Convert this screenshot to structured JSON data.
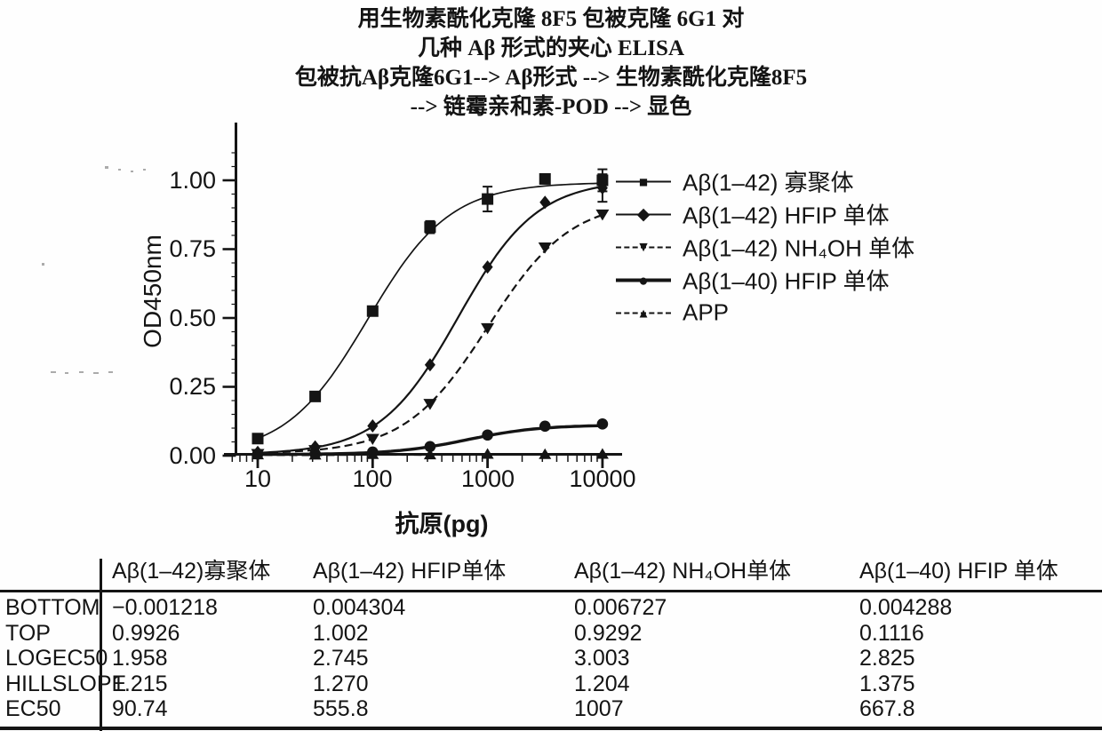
{
  "header": {
    "title_lines": [
      "用生物素酰化克隆 8F5 包被克隆 6G1 对",
      "几种 Aβ 形式的夹心 ELISA",
      "包被抗Aβ克隆6G1--> Aβ形式 --> 生物素酰化克隆8F5",
      "--> 链霉亲和素-POD --> 显色"
    ]
  },
  "chart_data": {
    "type": "line",
    "title": "",
    "xlabel": "抗原(pg)",
    "ylabel": "OD450nm",
    "x_scale": "log",
    "xlim": [
      8,
      14000
    ],
    "ylim": [
      0,
      1.1
    ],
    "grid": false,
    "legend_position": "right",
    "x_tick_values": [
      10,
      100,
      1000,
      10000
    ],
    "x_tick_labels": [
      "10",
      "100",
      "1000",
      "10000"
    ],
    "y_tick_values": [
      0,
      0.25,
      0.5,
      0.75,
      1.0
    ],
    "y_tick_labels": [
      "0.00",
      "0.25",
      "0.50",
      "0.75",
      "1.00"
    ],
    "series": [
      {
        "name": "Aβ(1–42) 寡聚体",
        "marker": "square",
        "marker_glyph": "■",
        "line": "solid",
        "stroke_width": 1.7,
        "fit": {
          "bottom": -0.001218,
          "top": 0.9926,
          "logec50": 1.958,
          "hill": 1.215
        },
        "points": [
          {
            "x": 10,
            "y": 0.062
          },
          {
            "x": 31.6,
            "y": 0.215
          },
          {
            "x": 100,
            "y": 0.525
          },
          {
            "x": 316,
            "y": 0.83,
            "e": 0.022
          },
          {
            "x": 1000,
            "y": 0.932,
            "e": 0.045
          },
          {
            "x": 3162,
            "y": 1.005
          },
          {
            "x": 10000,
            "y": 1.0,
            "e": 0.04
          }
        ]
      },
      {
        "name": "Aβ(1–42) HFIP 单体",
        "marker": "diamond",
        "marker_glyph": "◆",
        "line": "solid",
        "stroke_width": 2.2,
        "fit": {
          "bottom": 0.004304,
          "top": 1.002,
          "logec50": 2.745,
          "hill": 1.27
        },
        "points": [
          {
            "x": 10,
            "y": 0.012
          },
          {
            "x": 31.6,
            "y": 0.032
          },
          {
            "x": 100,
            "y": 0.108
          },
          {
            "x": 316,
            "y": 0.33
          },
          {
            "x": 1000,
            "y": 0.685
          },
          {
            "x": 3162,
            "y": 0.92
          },
          {
            "x": 10000,
            "y": 0.972,
            "e": 0.05
          }
        ]
      },
      {
        "name": "Aβ(1–42) NH₄OH 单体",
        "marker": "triangle-down",
        "marker_glyph": "▼",
        "line": "dashed",
        "stroke_width": 2.2,
        "fit": {
          "bottom": 0.006727,
          "top": 0.9292,
          "logec50": 3.003,
          "hill": 1.204
        },
        "points": [
          {
            "x": 10,
            "y": 0.008
          },
          {
            "x": 31.6,
            "y": 0.022
          },
          {
            "x": 100,
            "y": 0.063
          },
          {
            "x": 316,
            "y": 0.19
          },
          {
            "x": 1000,
            "y": 0.465
          },
          {
            "x": 3162,
            "y": 0.758
          },
          {
            "x": 10000,
            "y": 0.878
          }
        ]
      },
      {
        "name": "Aβ(1–40) HFIP 单体",
        "marker": "circle",
        "marker_glyph": "●",
        "line": "solid",
        "stroke_width": 3.4,
        "fit": {
          "bottom": 0.004288,
          "top": 0.1116,
          "logec50": 2.825,
          "hill": 1.375
        },
        "points": [
          {
            "x": 10,
            "y": 0.006
          },
          {
            "x": 31.6,
            "y": 0.007
          },
          {
            "x": 100,
            "y": 0.013
          },
          {
            "x": 316,
            "y": 0.033
          },
          {
            "x": 1000,
            "y": 0.075
          },
          {
            "x": 3162,
            "y": 0.107
          },
          {
            "x": 10000,
            "y": 0.115
          }
        ]
      },
      {
        "name": "APP",
        "marker": "triangle-up",
        "marker_glyph": "▲",
        "line": "dashed",
        "stroke_width": 2.3,
        "line_extend": [
          8.9,
          14000
        ],
        "points": [
          {
            "x": 10,
            "y": 0.003
          },
          {
            "x": 31.6,
            "y": 0.002
          },
          {
            "x": 100,
            "y": 0.004
          },
          {
            "x": 316,
            "y": 0.003
          },
          {
            "x": 1000,
            "y": 0.005
          },
          {
            "x": 3162,
            "y": 0.004
          },
          {
            "x": 10000,
            "y": 0.005
          }
        ]
      }
    ]
  },
  "table": {
    "col_headers": [
      "Aβ(1–42)寡聚体",
      "Aβ(1–42) HFIP单体",
      "Aβ(1–42) NH₄OH单体",
      "Aβ(1–40) HFIP 单体"
    ],
    "rows": [
      {
        "label": "BOTTOM",
        "values": [
          "−0.001218",
          "0.004304",
          "0.006727",
          "0.004288"
        ]
      },
      {
        "label": "TOP",
        "values": [
          "0.9926",
          "1.002",
          "0.9292",
          "0.1116"
        ]
      },
      {
        "label": "LOGEC50",
        "values": [
          "1.958",
          "2.745",
          "3.003",
          "2.825"
        ]
      },
      {
        "label": "HILLSLOPE",
        "values": [
          "1.215",
          "1.270",
          "1.204",
          "1.375"
        ]
      },
      {
        "label": "EC50",
        "values": [
          "90.74",
          "555.8",
          "1007",
          "667.8"
        ]
      }
    ]
  },
  "colors": {
    "ink": "#141414",
    "background": "#ffffff"
  }
}
